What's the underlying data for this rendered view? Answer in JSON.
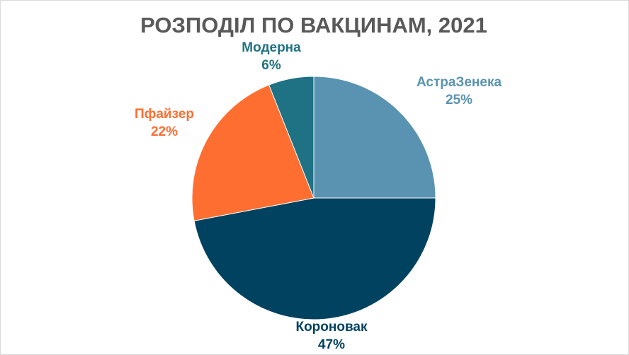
{
  "chart_data": {
    "type": "pie",
    "title": "РОЗПОДІЛ ПО ВАКЦИНАМ, 2021",
    "categories": [
      "АстраЗенека",
      "Коронoвак",
      "Пфайзер",
      "Модерна"
    ],
    "values": [
      25,
      47,
      22,
      6
    ],
    "value_labels": [
      "25%",
      "47%",
      "22%",
      "6%"
    ],
    "colors": [
      "#5a93b1",
      "#00425f",
      "#ff6e31",
      "#1f7283"
    ]
  }
}
